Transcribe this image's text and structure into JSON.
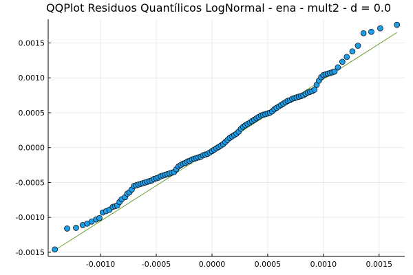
{
  "chart_data": {
    "type": "scatter",
    "title": "QQPlot Residuos Quantílicos LogNormal - ena - mult2 - d = 0.0",
    "xlabel": "",
    "ylabel": "",
    "xlim": [
      -0.00147,
      0.00173
    ],
    "ylim": [
      -0.00156,
      0.00184
    ],
    "x_ticks": [
      -0.001,
      -0.0005,
      0.0,
      0.0005,
      0.001,
      0.0015
    ],
    "x_tick_labels": [
      "-0.0010",
      "-0.0005",
      "0.0000",
      "0.0005",
      "0.0010",
      "0.0015"
    ],
    "y_ticks": [
      -0.0015,
      -0.001,
      -0.0005,
      0.0,
      0.0005,
      0.001,
      0.0015
    ],
    "y_tick_labels": [
      "-0.0015",
      "-0.0010",
      "-0.0005",
      "0.0000",
      "0.0005",
      "0.0010",
      "0.0015"
    ],
    "grid": true,
    "legend": "none",
    "colors": {
      "points": "#1f9de6",
      "point_edge": "#000000",
      "line": "#6ea135"
    },
    "reference_line": {
      "x": [
        -0.00141,
        0.00166
      ],
      "y": [
        -0.00147,
        0.00165
      ]
    },
    "series": [
      {
        "x": [
          -0.00141,
          -0.0013,
          -0.00122,
          -0.00116,
          -0.00112,
          -0.00108,
          -0.00104,
          -0.00101,
          -0.00098,
          -0.00095,
          -0.00092,
          -0.00089,
          -0.00087,
          -0.00085,
          -0.00083,
          -0.00081,
          -0.00078,
          -0.00076,
          -0.00074,
          -0.00072,
          -0.0007,
          -0.00068,
          -0.00066,
          -0.00064,
          -0.00062,
          -0.0006,
          -0.00058,
          -0.00056,
          -0.00054,
          -0.00052,
          -0.0005,
          -0.00048,
          -0.00046,
          -0.00044,
          -0.00042,
          -0.0004,
          -0.00038,
          -0.00036,
          -0.00034,
          -0.00032,
          -0.0003,
          -0.00028,
          -0.00026,
          -0.00024,
          -0.00022,
          -0.0002,
          -0.00018,
          -0.00016,
          -0.00014,
          -0.00012,
          -0.0001,
          -8e-05,
          -6e-05,
          -4e-05,
          -2e-05,
          0.0,
          2e-05,
          4e-05,
          6e-05,
          8e-05,
          0.0001,
          0.00012,
          0.00014,
          0.00016,
          0.00018,
          0.0002,
          0.00022,
          0.00024,
          0.00026,
          0.00028,
          0.0003,
          0.00032,
          0.00034,
          0.00036,
          0.00038,
          0.0004,
          0.00042,
          0.00044,
          0.00046,
          0.00048,
          0.0005,
          0.00052,
          0.00054,
          0.00056,
          0.00058,
          0.0006,
          0.00062,
          0.00064,
          0.00066,
          0.00068,
          0.0007,
          0.00072,
          0.00074,
          0.00076,
          0.00078,
          0.0008,
          0.00082,
          0.00084,
          0.00086,
          0.00088,
          0.0009,
          0.00092,
          0.00094,
          0.00096,
          0.00098,
          0.001,
          0.00102,
          0.00104,
          0.00106,
          0.00108,
          0.0011,
          0.00113,
          0.00117,
          0.00121,
          0.00126,
          0.00131,
          0.00136,
          0.00143,
          0.00151,
          0.00166
        ],
        "y": [
          -0.00146,
          -0.00116,
          -0.00115,
          -0.00111,
          -0.00109,
          -0.00106,
          -0.00103,
          -0.00101,
          -0.00093,
          -0.00091,
          -0.00089,
          -0.00085,
          -0.00084,
          -0.00083,
          -0.00078,
          -0.00074,
          -0.00071,
          -0.00066,
          -0.00064,
          -0.0006,
          -0.00055,
          -0.00054,
          -0.00053,
          -0.00052,
          -0.00051,
          -0.0005,
          -0.00049,
          -0.00048,
          -0.00047,
          -0.00045,
          -0.00044,
          -0.00043,
          -0.00041,
          -0.0004,
          -0.00039,
          -0.00038,
          -0.00037,
          -0.00036,
          -0.00035,
          -0.00031,
          -0.00027,
          -0.00025,
          -0.00023,
          -0.00022,
          -0.0002,
          -0.00019,
          -0.00017,
          -0.00016,
          -0.00015,
          -0.00014,
          -0.00013,
          -0.00011,
          -0.0001,
          -9e-05,
          -7e-05,
          -5e-05,
          -3e-05,
          -1e-05,
          1e-05,
          3e-05,
          5e-05,
          8e-05,
          0.00011,
          0.00014,
          0.00016,
          0.00018,
          0.0002,
          0.00023,
          0.00027,
          0.0003,
          0.00032,
          0.00034,
          0.00036,
          0.00038,
          0.0004,
          0.00042,
          0.00044,
          0.00046,
          0.00047,
          0.00048,
          0.00049,
          0.0005,
          0.00052,
          0.00055,
          0.00057,
          0.00059,
          0.00061,
          0.00063,
          0.00065,
          0.00067,
          0.00068,
          0.0007,
          0.00071,
          0.00072,
          0.00073,
          0.00074,
          0.00075,
          0.00077,
          0.00079,
          0.0008,
          0.00081,
          0.00083,
          0.0009,
          0.00096,
          0.00101,
          0.00104,
          0.00105,
          0.00106,
          0.00107,
          0.00108,
          0.00109,
          0.00115,
          0.00123,
          0.0013,
          0.00138,
          0.00146,
          0.00164,
          0.00166,
          0.00171,
          0.00176
        ]
      }
    ]
  }
}
